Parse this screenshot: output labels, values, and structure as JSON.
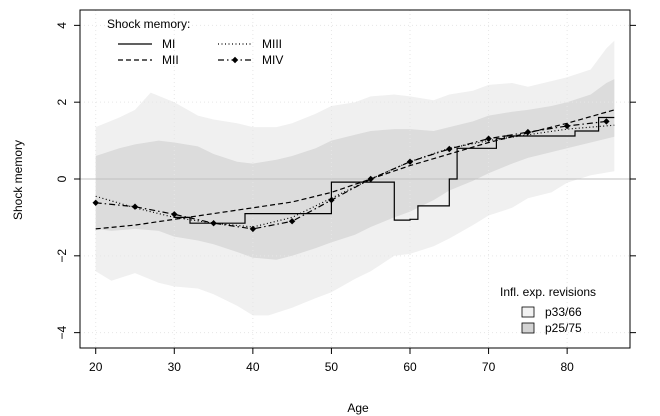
{
  "chart_data": {
    "type": "line",
    "xlabel": "Age",
    "ylabel": "Shock memory",
    "xlim": [
      18,
      88
    ],
    "ylim": [
      -4.4,
      4.4
    ],
    "x_ticks": [
      20,
      30,
      40,
      50,
      60,
      70,
      80
    ],
    "y_ticks": [
      -4,
      -2,
      0,
      2,
      4
    ],
    "grid": true,
    "zero_line": 0,
    "series_legend": {
      "title": "Shock memory:",
      "position": "top-left"
    },
    "series": [
      {
        "name": "MI",
        "style": "solid",
        "points": [
          [
            30,
            -1.0
          ],
          [
            32,
            -1.0
          ],
          [
            32,
            -1.15
          ],
          [
            39,
            -1.15
          ],
          [
            39,
            -0.9
          ],
          [
            50,
            -0.9
          ],
          [
            50,
            -0.08
          ],
          [
            58,
            -0.08
          ],
          [
            58,
            -1.07
          ],
          [
            60,
            -1.07
          ],
          [
            60,
            -1.05
          ],
          [
            61,
            -1.05
          ],
          [
            61,
            -0.7
          ],
          [
            65,
            -0.7
          ],
          [
            65,
            0.0
          ],
          [
            66,
            0.0
          ],
          [
            66,
            0.8
          ],
          [
            71,
            0.8
          ],
          [
            71,
            1.05
          ],
          [
            72,
            1.05
          ],
          [
            72,
            1.12
          ],
          [
            81,
            1.12
          ],
          [
            81,
            1.25
          ],
          [
            84,
            1.25
          ],
          [
            84,
            1.6
          ],
          [
            86,
            1.6
          ]
        ]
      },
      {
        "name": "MII",
        "style": "dashed",
        "points": [
          [
            20,
            -1.3
          ],
          [
            25,
            -1.2
          ],
          [
            30,
            -1.05
          ],
          [
            35,
            -0.9
          ],
          [
            40,
            -0.75
          ],
          [
            45,
            -0.6
          ],
          [
            50,
            -0.35
          ],
          [
            55,
            0.0
          ],
          [
            60,
            0.35
          ],
          [
            65,
            0.65
          ],
          [
            70,
            0.95
          ],
          [
            75,
            1.2
          ],
          [
            80,
            1.45
          ],
          [
            86,
            1.8
          ]
        ]
      },
      {
        "name": "MIII",
        "style": "dotted",
        "points": [
          [
            20,
            -0.45
          ],
          [
            25,
            -0.75
          ],
          [
            30,
            -1.0
          ],
          [
            35,
            -1.15
          ],
          [
            40,
            -1.25
          ],
          [
            45,
            -1.0
          ],
          [
            50,
            -0.5
          ],
          [
            55,
            0.0
          ],
          [
            60,
            0.45
          ],
          [
            65,
            0.8
          ],
          [
            70,
            1.0
          ],
          [
            75,
            1.15
          ],
          [
            80,
            1.3
          ],
          [
            86,
            1.4
          ]
        ]
      },
      {
        "name": "MIV",
        "style": "dashdot-diamond",
        "points": [
          [
            20,
            -0.62
          ],
          [
            25,
            -0.72
          ],
          [
            30,
            -0.92
          ],
          [
            35,
            -1.15
          ],
          [
            40,
            -1.3
          ],
          [
            45,
            -1.1
          ],
          [
            50,
            -0.55
          ],
          [
            55,
            0.0
          ],
          [
            60,
            0.45
          ],
          [
            65,
            0.78
          ],
          [
            70,
            1.05
          ],
          [
            75,
            1.22
          ],
          [
            80,
            1.38
          ],
          [
            85,
            1.5
          ]
        ]
      }
    ],
    "bands_legend": {
      "title": "Infl. exp. revisions",
      "position": "bottom-right"
    },
    "bands": [
      {
        "name": "p25/75",
        "color": "#f0f0f0",
        "upper": [
          [
            20,
            1.35
          ],
          [
            23,
            1.6
          ],
          [
            25,
            1.8
          ],
          [
            27,
            2.25
          ],
          [
            30,
            2.0
          ],
          [
            33,
            1.65
          ],
          [
            35,
            1.55
          ],
          [
            38,
            1.45
          ],
          [
            40,
            1.35
          ],
          [
            43,
            1.35
          ],
          [
            45,
            1.45
          ],
          [
            48,
            1.7
          ],
          [
            50,
            1.9
          ],
          [
            53,
            2.0
          ],
          [
            55,
            2.15
          ],
          [
            58,
            2.2
          ],
          [
            60,
            2.15
          ],
          [
            63,
            2.05
          ],
          [
            65,
            2.2
          ],
          [
            68,
            2.3
          ],
          [
            70,
            2.45
          ],
          [
            73,
            2.5
          ],
          [
            75,
            2.4
          ],
          [
            78,
            2.55
          ],
          [
            80,
            2.65
          ],
          [
            83,
            2.85
          ],
          [
            85,
            3.4
          ],
          [
            86,
            3.6
          ]
        ],
        "lower": [
          [
            20,
            -2.4
          ],
          [
            22,
            -2.65
          ],
          [
            25,
            -2.45
          ],
          [
            28,
            -2.7
          ],
          [
            30,
            -2.8
          ],
          [
            33,
            -2.85
          ],
          [
            35,
            -3.0
          ],
          [
            38,
            -3.3
          ],
          [
            40,
            -3.55
          ],
          [
            42,
            -3.55
          ],
          [
            45,
            -3.35
          ],
          [
            48,
            -3.1
          ],
          [
            50,
            -2.95
          ],
          [
            53,
            -2.6
          ],
          [
            55,
            -2.4
          ],
          [
            58,
            -2.0
          ],
          [
            60,
            -1.95
          ],
          [
            63,
            -1.75
          ],
          [
            65,
            -1.55
          ],
          [
            68,
            -1.2
          ],
          [
            70,
            -0.95
          ],
          [
            73,
            -0.75
          ],
          [
            75,
            -0.5
          ],
          [
            78,
            -0.35
          ],
          [
            80,
            -0.1
          ],
          [
            83,
            0.1
          ],
          [
            86,
            0.2
          ]
        ]
      },
      {
        "name": "p33/66",
        "color": "#dcdcdc",
        "upper": [
          [
            20,
            0.6
          ],
          [
            23,
            0.8
          ],
          [
            25,
            0.9
          ],
          [
            28,
            1.0
          ],
          [
            30,
            0.95
          ],
          [
            33,
            0.85
          ],
          [
            35,
            0.65
          ],
          [
            38,
            0.45
          ],
          [
            40,
            0.4
          ],
          [
            43,
            0.5
          ],
          [
            45,
            0.6
          ],
          [
            48,
            0.8
          ],
          [
            50,
            1.0
          ],
          [
            53,
            1.15
          ],
          [
            55,
            1.25
          ],
          [
            58,
            1.3
          ],
          [
            60,
            1.3
          ],
          [
            63,
            1.25
          ],
          [
            65,
            1.35
          ],
          [
            68,
            1.5
          ],
          [
            70,
            1.65
          ],
          [
            73,
            1.75
          ],
          [
            75,
            1.8
          ],
          [
            78,
            1.9
          ],
          [
            80,
            2.0
          ],
          [
            83,
            2.2
          ],
          [
            85,
            2.5
          ],
          [
            86,
            2.6
          ]
        ],
        "lower": [
          [
            20,
            -1.3
          ],
          [
            22,
            -1.35
          ],
          [
            25,
            -1.3
          ],
          [
            28,
            -1.35
          ],
          [
            30,
            -1.5
          ],
          [
            33,
            -1.6
          ],
          [
            35,
            -1.7
          ],
          [
            38,
            -1.9
          ],
          [
            40,
            -2.05
          ],
          [
            43,
            -2.1
          ],
          [
            45,
            -2.0
          ],
          [
            48,
            -1.8
          ],
          [
            50,
            -1.65
          ],
          [
            53,
            -1.45
          ],
          [
            55,
            -1.25
          ],
          [
            58,
            -1.0
          ],
          [
            60,
            -0.85
          ],
          [
            63,
            -0.55
          ],
          [
            65,
            -0.3
          ],
          [
            68,
            -0.05
          ],
          [
            70,
            0.15
          ],
          [
            73,
            0.4
          ],
          [
            75,
            0.55
          ],
          [
            78,
            0.7
          ],
          [
            80,
            0.8
          ],
          [
            83,
            0.95
          ],
          [
            86,
            1.1
          ]
        ]
      }
    ],
    "colors": {
      "line": "#000000",
      "zero_line": "#c0c0c0",
      "grid": "#e6e6e6"
    }
  }
}
